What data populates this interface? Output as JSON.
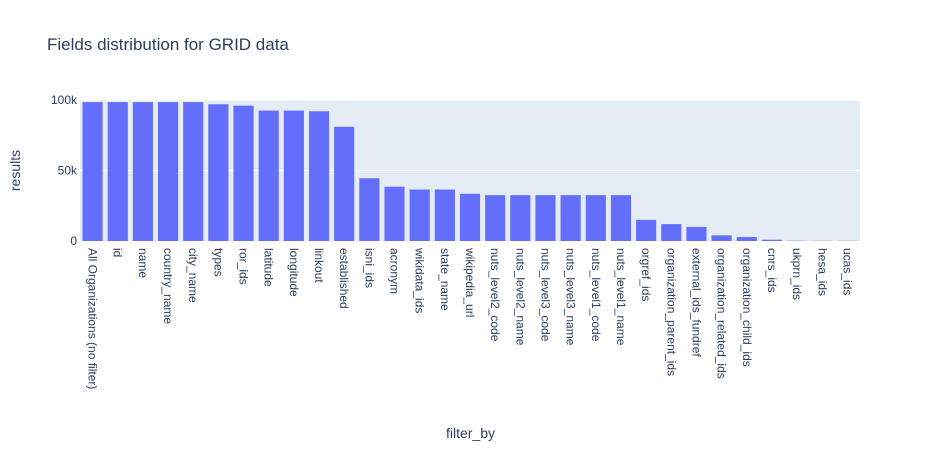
{
  "chart_data": {
    "type": "bar",
    "title": "Fields distribution for GRID data",
    "xlabel": "filter_by",
    "ylabel": "results",
    "ylim": [
      0,
      100000
    ],
    "y_ticks": [
      0,
      50000,
      100000
    ],
    "y_tick_labels": [
      "0",
      "50k",
      "100k"
    ],
    "grid": true,
    "bar_color": "#636efa",
    "plot_bg_color": "#e5ecf6",
    "categories": [
      "All Organizations (no filter)",
      "id",
      "name",
      "country_name",
      "city_name",
      "types",
      "ror_ids",
      "latitude",
      "longitude",
      "linkout",
      "established",
      "isni_ids",
      "acronym",
      "wikidata_ids",
      "state_name",
      "wikipedia_url",
      "nuts_level2_code",
      "nuts_level2_name",
      "nuts_level3_code",
      "nuts_level3_name",
      "nuts_level1_code",
      "nuts_level1_name",
      "orgref_ids",
      "organization_parent_ids",
      "external_ids_fundref",
      "organization_related_ids",
      "organization_child_ids",
      "cnrs_ids",
      "ukprn_ids",
      "hesa_ids",
      "ucas_ids"
    ],
    "values": [
      98500,
      98500,
      98500,
      98500,
      98500,
      97000,
      96000,
      92500,
      92500,
      92000,
      81000,
      44500,
      38500,
      36500,
      36500,
      33500,
      32500,
      32500,
      32500,
      32500,
      32500,
      32500,
      15000,
      12000,
      10000,
      4000,
      2800,
      900,
      200,
      150,
      150
    ]
  }
}
